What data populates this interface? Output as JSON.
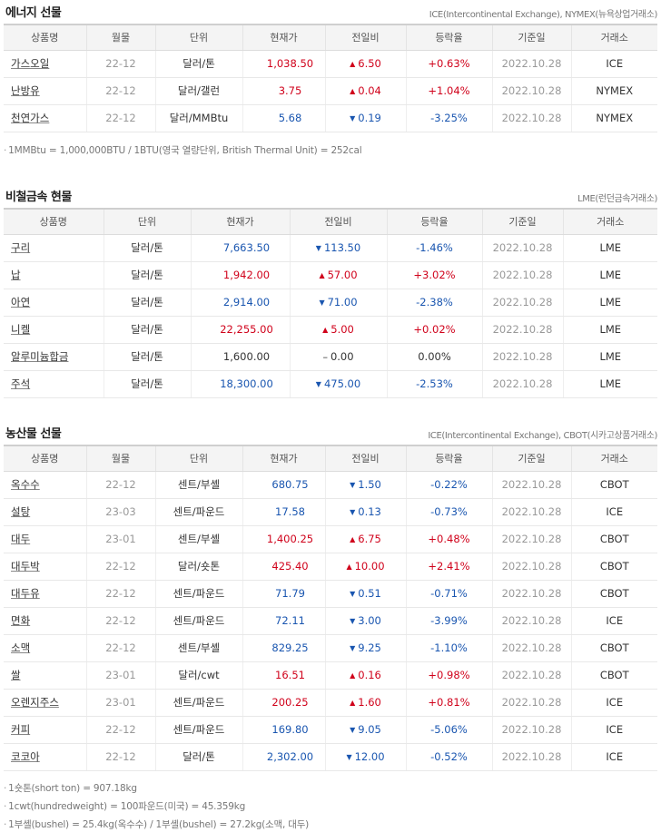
{
  "energy": {
    "title": "에너지 선물",
    "source": "ICE(Intercontinental Exchange), NYMEX(뉴욕상업거래소)",
    "headers": [
      "상품명",
      "월물",
      "단위",
      "현재가",
      "전일비",
      "등락율",
      "기준일",
      "거래소"
    ],
    "rows": [
      {
        "name": "가스오일",
        "month": "22-12",
        "unit": "달러/톤",
        "price": "1,038.50",
        "dir": "up",
        "change": "6.50",
        "rate": "+0.63%",
        "date": "2022.10.28",
        "exchange": "ICE"
      },
      {
        "name": "난방유",
        "month": "22-12",
        "unit": "달러/갤런",
        "price": "3.75",
        "dir": "up",
        "change": "0.04",
        "rate": "+1.04%",
        "date": "2022.10.28",
        "exchange": "NYMEX"
      },
      {
        "name": "천연가스",
        "month": "22-12",
        "unit": "달러/MMBtu",
        "price": "5.68",
        "dir": "down",
        "change": "0.19",
        "rate": "-3.25%",
        "date": "2022.10.28",
        "exchange": "NYMEX"
      }
    ],
    "note": "1MMBtu = 1,000,000BTU / 1BTU(영국 열량단위, British Thermal Unit) = 252cal"
  },
  "metals": {
    "title": "비철금속 현물",
    "source": "LME(런던금속거래소)",
    "headers": [
      "상품명",
      "단위",
      "현재가",
      "전일비",
      "등락율",
      "기준일",
      "거래소"
    ],
    "rows": [
      {
        "name": "구리",
        "unit": "달러/톤",
        "price": "7,663.50",
        "dir": "down",
        "change": "113.50",
        "rate": "-1.46%",
        "date": "2022.10.28",
        "exchange": "LME"
      },
      {
        "name": "납",
        "unit": "달러/톤",
        "price": "1,942.00",
        "dir": "up",
        "change": "57.00",
        "rate": "+3.02%",
        "date": "2022.10.28",
        "exchange": "LME"
      },
      {
        "name": "아연",
        "unit": "달러/톤",
        "price": "2,914.00",
        "dir": "down",
        "change": "71.00",
        "rate": "-2.38%",
        "date": "2022.10.28",
        "exchange": "LME"
      },
      {
        "name": "니켈",
        "unit": "달러/톤",
        "price": "22,255.00",
        "dir": "up",
        "change": "5.00",
        "rate": "+0.02%",
        "date": "2022.10.28",
        "exchange": "LME"
      },
      {
        "name": "알루미늄합금",
        "unit": "달러/톤",
        "price": "1,600.00",
        "dir": "flat",
        "change": "0.00",
        "rate": "0.00%",
        "date": "2022.10.28",
        "exchange": "LME"
      },
      {
        "name": "주석",
        "unit": "달러/톤",
        "price": "18,300.00",
        "dir": "down",
        "change": "475.00",
        "rate": "-2.53%",
        "date": "2022.10.28",
        "exchange": "LME"
      }
    ]
  },
  "agri": {
    "title": "농산물 선물",
    "source": "ICE(Intercontinental Exchange), CBOT(시카고상품거래소)",
    "headers": [
      "상품명",
      "월물",
      "단위",
      "현재가",
      "전일비",
      "등락율",
      "기준일",
      "거래소"
    ],
    "rows": [
      {
        "name": "옥수수",
        "month": "22-12",
        "unit": "센트/부셸",
        "price": "680.75",
        "dir": "down",
        "change": "1.50",
        "rate": "-0.22%",
        "date": "2022.10.28",
        "exchange": "CBOT"
      },
      {
        "name": "설탕",
        "month": "23-03",
        "unit": "센트/파운드",
        "price": "17.58",
        "dir": "down",
        "change": "0.13",
        "rate": "-0.73%",
        "date": "2022.10.28",
        "exchange": "ICE"
      },
      {
        "name": "대두",
        "month": "23-01",
        "unit": "센트/부셸",
        "price": "1,400.25",
        "dir": "up",
        "change": "6.75",
        "rate": "+0.48%",
        "date": "2022.10.28",
        "exchange": "CBOT"
      },
      {
        "name": "대두박",
        "month": "22-12",
        "unit": "달러/숏톤",
        "price": "425.40",
        "dir": "up",
        "change": "10.00",
        "rate": "+2.41%",
        "date": "2022.10.28",
        "exchange": "CBOT"
      },
      {
        "name": "대두유",
        "month": "22-12",
        "unit": "센트/파운드",
        "price": "71.79",
        "dir": "down",
        "change": "0.51",
        "rate": "-0.71%",
        "date": "2022.10.28",
        "exchange": "CBOT"
      },
      {
        "name": "면화",
        "month": "22-12",
        "unit": "센트/파운드",
        "price": "72.11",
        "dir": "down",
        "change": "3.00",
        "rate": "-3.99%",
        "date": "2022.10.28",
        "exchange": "ICE"
      },
      {
        "name": "소맥",
        "month": "22-12",
        "unit": "센트/부셸",
        "price": "829.25",
        "dir": "down",
        "change": "9.25",
        "rate": "-1.10%",
        "date": "2022.10.28",
        "exchange": "CBOT"
      },
      {
        "name": "쌀",
        "month": "23-01",
        "unit": "달러/cwt",
        "price": "16.51",
        "dir": "up",
        "change": "0.16",
        "rate": "+0.98%",
        "date": "2022.10.28",
        "exchange": "CBOT"
      },
      {
        "name": "오렌지주스",
        "month": "23-01",
        "unit": "센트/파운드",
        "price": "200.25",
        "dir": "up",
        "change": "1.60",
        "rate": "+0.81%",
        "date": "2022.10.28",
        "exchange": "ICE"
      },
      {
        "name": "커피",
        "month": "22-12",
        "unit": "센트/파운드",
        "price": "169.80",
        "dir": "down",
        "change": "9.05",
        "rate": "-5.06%",
        "date": "2022.10.28",
        "exchange": "ICE"
      },
      {
        "name": "코코아",
        "month": "22-12",
        "unit": "달러/톤",
        "price": "2,302.00",
        "dir": "down",
        "change": "12.00",
        "rate": "-0.52%",
        "date": "2022.10.28",
        "exchange": "ICE"
      }
    ],
    "notes": [
      "1숏톤(short ton) = 907.18kg",
      "1cwt(hundredweight) = 100파운드(미국) = 45.359kg",
      "1부셸(bushel) = 25.4kg(옥수수) / 1부셸(bushel) = 27.2kg(소맥, 대두)"
    ]
  },
  "colors": {
    "up": "#d0021b",
    "down": "#1a56b0",
    "header_bg": "#f4f4f4"
  },
  "icons": {
    "up": "triangle-up-icon",
    "down": "triangle-down-icon",
    "flat": "dash-icon"
  }
}
